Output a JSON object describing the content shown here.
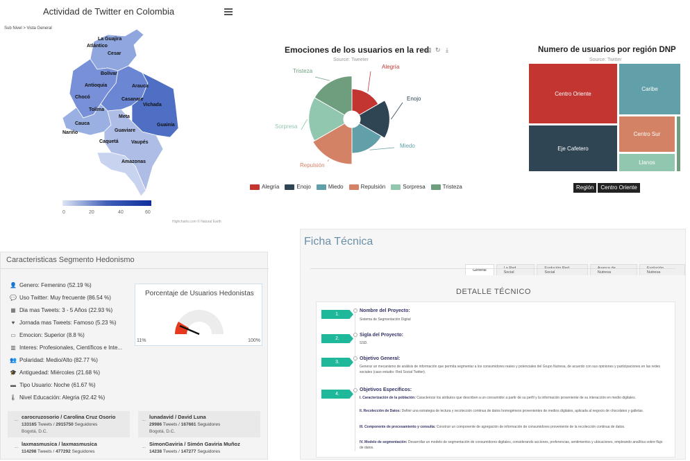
{
  "map": {
    "title": "Actividad de Twitter en Colombia",
    "breadcrumb": "Sub Nivel > Vista General",
    "credits": "Highcharts.com © Natural Earth",
    "departments": [
      "La Guajira",
      "Atlántico",
      "Cesar",
      "Bolívar",
      "Antioquia",
      "Arauca",
      "Chocó",
      "Casanare",
      "Tolima",
      "Vichada",
      "Meta",
      "Guainía",
      "Cauca",
      "Guaviare",
      "Nariño",
      "Caquetá",
      "Vaupés",
      "Amazonas"
    ],
    "legend": {
      "ticks": [
        "0",
        "20",
        "40",
        "60"
      ]
    }
  },
  "pie": {
    "title": "Emociones de los usuarios en la red",
    "source": "Source: Tweeter",
    "toolbar": [
      "document-icon",
      "refresh-icon",
      "download-icon"
    ],
    "chart_data": {
      "type": "pie",
      "title": "Emociones de los usuarios en la red",
      "subtitle": "Source: Tweeter",
      "categories": [
        "Alegría",
        "Enojo",
        "Miedo",
        "Repulsión",
        "Sorpresa",
        "Tristeza"
      ],
      "values": [
        12,
        16,
        14,
        20,
        19,
        19
      ],
      "colors": [
        "#c23531",
        "#2f4554",
        "#61a0a8",
        "#d48265",
        "#91c7ae",
        "#6e9e7d"
      ],
      "legend": "bottom"
    }
  },
  "treemap": {
    "title": "Numero de usuarios por región DNP",
    "source": "Source: Twitter",
    "chart_data": {
      "type": "treemap",
      "categories": [
        "Centro Oriente",
        "Caribe",
        "Eje Cafetero",
        "Centro Sur",
        "Llanos"
      ],
      "values": [
        36,
        22,
        25,
        13,
        6
      ],
      "colors": [
        "#c23531",
        "#61a0a8",
        "#2f4554",
        "#d48265",
        "#91c7ae"
      ]
    },
    "breadcrumb": [
      "Región",
      "Centro Oriente"
    ]
  },
  "hedonism": {
    "title": "Caracteristicas Segmento Hedonismo",
    "attributes": [
      {
        "icon": "user-icon",
        "text": "Genero: Femenino (52.19 %)"
      },
      {
        "icon": "chat-icon",
        "text": "Uso Twitter: Muy frecuente (86.54 %)"
      },
      {
        "icon": "calendar-icon",
        "text": "Dia mas Tweets: 3 - 5 Años (22.93 %)"
      },
      {
        "icon": "heart-icon",
        "text": "Jornada mas Tweets: Famoso (5.23 %)"
      },
      {
        "icon": "card-icon",
        "text": "Emocion: Superior (8.8 %)"
      },
      {
        "icon": "building-icon",
        "text": "Interes: Profesionales, Científicos e Inte..."
      },
      {
        "icon": "users-icon",
        "text": "Polaridad: Medio/Alto (82.77 %)"
      },
      {
        "icon": "graduation-icon",
        "text": "Antiguedad: Miércoles (21.68 %)"
      },
      {
        "icon": "briefcase-icon",
        "text": "Tipo Usuario: Noche (61.67 %)"
      },
      {
        "icon": "thermometer-icon",
        "text": "Nivel Educación: Alegria (92.42 %)"
      }
    ],
    "gauge": {
      "title": "Porcentaje de Usuarios Hedonistas",
      "min": "11%",
      "max": "100%",
      "value": 11
    },
    "users": [
      {
        "name": "carocruzosorio / Carolina Cruz Osorio",
        "tweets": "133165",
        "followers": "2915750",
        "location": "Bogotá, D.C."
      },
      {
        "name": "lunadavid / David Luna",
        "tweets": "29986",
        "followers": "167661",
        "location": "Bogotá, D.C."
      },
      {
        "name": "laxmasmusica / laxmasmusica",
        "tweets": "114298",
        "followers": "477292",
        "location": ""
      },
      {
        "name": "SimonGaviria / Simón Gaviria Muñoz",
        "tweets": "14238",
        "followers": "147277",
        "location": ""
      }
    ],
    "labels": {
      "tweets": "Tweets",
      "followers": "Seguidores"
    }
  },
  "ficha": {
    "title": "Ficha Técnica",
    "tabs": [
      "General",
      "La Red Social",
      "Evolución Red Social",
      "Avance de Nutresa",
      "Evolución Nutresa"
    ],
    "section": "DETALLE TÉCNICO",
    "steps": [
      {
        "num": "1.",
        "title": "Nombre del Proyecto:",
        "text": "Sistema de Segmentación Digital"
      },
      {
        "num": "2.",
        "title": "Sigla del Proyecto:",
        "text": "SSD."
      },
      {
        "num": "3.",
        "title": "Objetivo General:",
        "text": "Generar un mecanismo de análisis de información que permita segmentar a los consumidores reales y potenciales del Grupo Nutresa, de acuerdo con sus opiniones y participaciones en las redes sociales (caso estudio: Red Social Twitter)."
      },
      {
        "num": "4.",
        "title": "Objetivos Específicos:",
        "text": ""
      }
    ],
    "objectives": [
      {
        "head": "I. Caracterización de la población:",
        "text": "Caracterizar los atributos que describen a un consumidor a partir de su perfil y la información proveniente de su interacción en medio digitales."
      },
      {
        "head": "II. Recolección de Datos:",
        "text": "Definir una estrategia de lectura y recolección continua de datos homogéneos provenientes de medios digitales, aplicada al negocio de chocolates y galletas."
      },
      {
        "head": "III. Componente de procesamiento y consulta:",
        "text": "Construir un componente de agregación de información de consumidores proveniente de la recolección continua de datos."
      },
      {
        "head": "IV. Modelo de segmentación:",
        "text": "Desarrollar un modelo de segmentación de consumidores digitales, considerando acciones, preferencias, sentimientos y ubicaciones, empleando analítica sobre flujo de datos."
      }
    ]
  }
}
